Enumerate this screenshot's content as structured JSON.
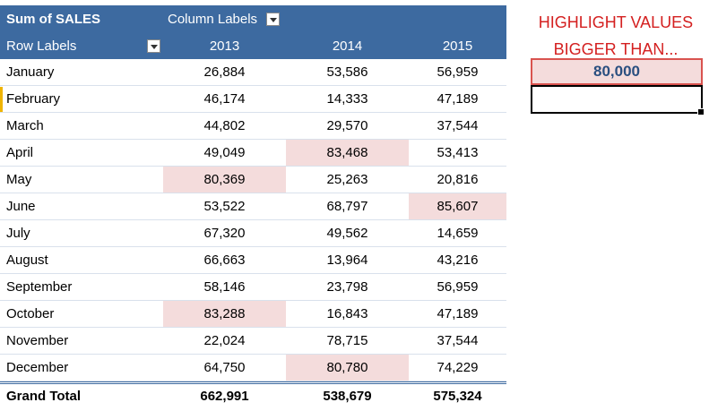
{
  "pivot": {
    "title": "Sum of SALES",
    "column_labels": "Column Labels",
    "row_labels": "Row Labels",
    "years": [
      "2013",
      "2014",
      "2015"
    ],
    "rows": [
      {
        "month": "January",
        "values": [
          "26,884",
          "53,586",
          "56,959"
        ],
        "highlight": [
          false,
          false,
          false
        ]
      },
      {
        "month": "February",
        "values": [
          "46,174",
          "14,333",
          "47,189"
        ],
        "highlight": [
          false,
          false,
          false
        ]
      },
      {
        "month": "March",
        "values": [
          "44,802",
          "29,570",
          "37,544"
        ],
        "highlight": [
          false,
          false,
          false
        ]
      },
      {
        "month": "April",
        "values": [
          "49,049",
          "83,468",
          "53,413"
        ],
        "highlight": [
          false,
          true,
          false
        ]
      },
      {
        "month": "May",
        "values": [
          "80,369",
          "25,263",
          "20,816"
        ],
        "highlight": [
          true,
          false,
          false
        ]
      },
      {
        "month": "June",
        "values": [
          "53,522",
          "68,797",
          "85,607"
        ],
        "highlight": [
          false,
          false,
          true
        ]
      },
      {
        "month": "July",
        "values": [
          "67,320",
          "49,562",
          "14,659"
        ],
        "highlight": [
          false,
          false,
          false
        ]
      },
      {
        "month": "August",
        "values": [
          "66,663",
          "13,964",
          "43,216"
        ],
        "highlight": [
          false,
          false,
          false
        ]
      },
      {
        "month": "September",
        "values": [
          "58,146",
          "23,798",
          "56,959"
        ],
        "highlight": [
          false,
          false,
          false
        ]
      },
      {
        "month": "October",
        "values": [
          "83,288",
          "16,843",
          "47,189"
        ],
        "highlight": [
          true,
          false,
          false
        ]
      },
      {
        "month": "November",
        "values": [
          "22,024",
          "78,715",
          "37,544"
        ],
        "highlight": [
          false,
          false,
          false
        ]
      },
      {
        "month": "December",
        "values": [
          "64,750",
          "80,780",
          "74,229"
        ],
        "highlight": [
          false,
          true,
          false
        ]
      }
    ],
    "grand_total": {
      "label": "Grand Total",
      "values": [
        "662,991",
        "538,679",
        "575,324"
      ]
    }
  },
  "side": {
    "title_line1": "HIGHLIGHT VALUES",
    "title_line2": "BIGGER THAN...",
    "threshold": "80,000",
    "input_value": ""
  },
  "colors": {
    "header_bg": "#3d6aa0",
    "highlight_bg": "#f4dcdc",
    "title_red": "#d42020",
    "threshold_text": "#2a4f80"
  }
}
